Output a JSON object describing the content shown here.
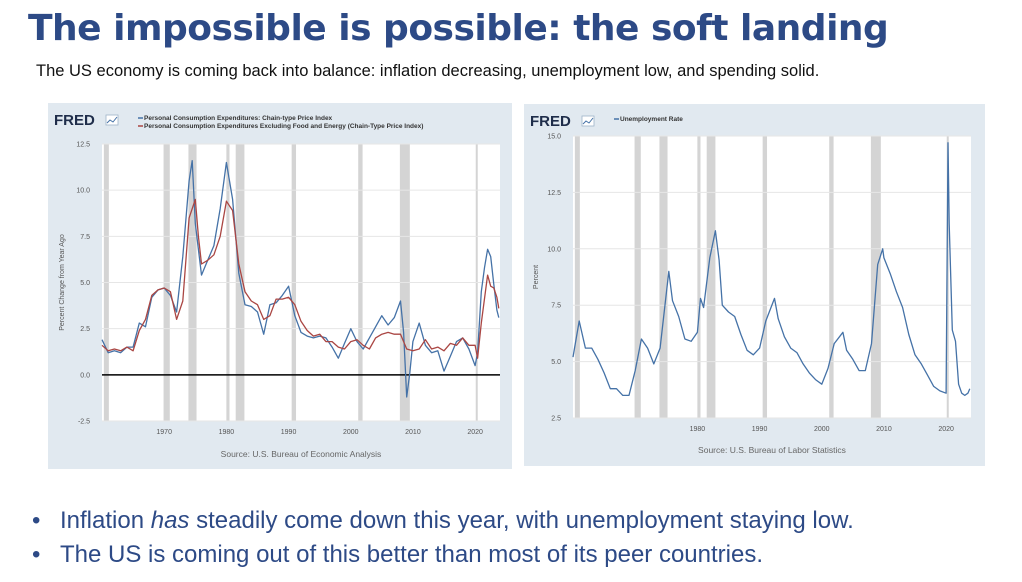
{
  "slide": {
    "title": "The impossible is possible: the soft landing",
    "subtitle": "The US economy is coming back into balance: inflation decreasing, unemployment low, and spending solid.",
    "bullets": [
      {
        "before": "Inflation ",
        "emph": "has",
        "after": " steadily come down this year, with unemployment staying low."
      },
      {
        "before": "The US is coming out of this better than most of its peer countries.",
        "emph": "",
        "after": ""
      }
    ],
    "bullet_glyph": "•"
  },
  "colors": {
    "title": "#2d4a86",
    "panel_bg": "#e1e9f0",
    "series_blue": "#4572a7",
    "series_red": "#aa4643",
    "recession": "#d4d4d4"
  },
  "chart_data": [
    {
      "type": "line",
      "logo": "FRED",
      "logo_icon": "fred-chart-icon",
      "legend_placement": "top-left",
      "ylabel": "Percent Change from Year Ago",
      "xlabel": "",
      "source": "Source: U.S. Bureau of Economic Analysis",
      "xlim": [
        1960,
        2024
      ],
      "ylim": [
        -2.5,
        12.5
      ],
      "yticks": [
        -2.5,
        0.0,
        2.5,
        5.0,
        7.5,
        10.0,
        12.5
      ],
      "ytick_labels": [
        "-2.5",
        "0.0",
        "2.5",
        "5.0",
        "7.5",
        "10.0",
        "12.5"
      ],
      "xticks": [
        1970,
        1980,
        1990,
        2000,
        2010,
        2020
      ],
      "xtick_labels": [
        "1970",
        "1980",
        "1990",
        "2000",
        "2010",
        "2020"
      ],
      "zero_line": true,
      "recessions": [
        [
          1960.3,
          1961.1
        ],
        [
          1969.9,
          1970.9
        ],
        [
          1973.9,
          1975.2
        ],
        [
          1980.0,
          1980.5
        ],
        [
          1981.5,
          1982.9
        ],
        [
          1990.5,
          1991.2
        ],
        [
          2001.2,
          2001.9
        ],
        [
          2007.9,
          2009.5
        ],
        [
          2020.1,
          2020.4
        ]
      ],
      "series": [
        {
          "name": "Personal Consumption Expenditures: Chain-type Price Index",
          "color": "#4572a7",
          "x": [
            1960.0,
            1961.0,
            1962.0,
            1963.0,
            1964.0,
            1965.0,
            1966.0,
            1967.0,
            1968.0,
            1969.0,
            1970.0,
            1971.0,
            1972.0,
            1973.0,
            1974.0,
            1974.5,
            1975.0,
            1976.0,
            1977.0,
            1978.0,
            1979.0,
            1980.0,
            1981.0,
            1982.0,
            1983.0,
            1984.0,
            1985.0,
            1986.0,
            1987.0,
            1988.0,
            1989.0,
            1990.0,
            1991.0,
            1992.0,
            1993.0,
            1994.0,
            1995.0,
            1996.0,
            1997.0,
            1998.0,
            1999.0,
            2000.0,
            2001.0,
            2002.0,
            2003.0,
            2004.0,
            2005.0,
            2006.0,
            2007.0,
            2008.0,
            2008.5,
            2009.0,
            2009.5,
            2010.0,
            2011.0,
            2012.0,
            2013.0,
            2014.0,
            2015.0,
            2016.0,
            2017.0,
            2018.0,
            2019.0,
            2020.0,
            2020.4,
            2021.0,
            2021.5,
            2022.0,
            2022.5,
            2023.0,
            2023.5,
            2023.8
          ],
          "y": [
            1.9,
            1.2,
            1.3,
            1.2,
            1.5,
            1.5,
            2.8,
            2.6,
            4.2,
            4.6,
            4.7,
            4.3,
            3.4,
            6.4,
            10.5,
            11.6,
            8.2,
            5.4,
            6.2,
            7.0,
            9.0,
            11.5,
            9.5,
            5.5,
            3.8,
            3.7,
            3.4,
            2.2,
            3.8,
            3.9,
            4.3,
            4.8,
            3.2,
            2.3,
            2.1,
            2.0,
            2.1,
            2.0,
            1.5,
            0.9,
            1.7,
            2.5,
            1.8,
            1.4,
            2.0,
            2.6,
            3.2,
            2.7,
            3.1,
            4.0,
            2.3,
            -1.2,
            0.1,
            1.8,
            2.8,
            1.6,
            1.2,
            1.3,
            0.2,
            1.0,
            1.8,
            2.0,
            1.4,
            0.5,
            1.2,
            4.5,
            5.8,
            6.8,
            6.4,
            4.9,
            3.5,
            3.1
          ]
        },
        {
          "name": "Personal Consumption Expenditures Excluding Food and Energy (Chain-Type Price Index)",
          "color": "#aa4643",
          "x": [
            1960.0,
            1961.0,
            1962.0,
            1963.0,
            1964.0,
            1965.0,
            1966.0,
            1967.0,
            1968.0,
            1969.0,
            1970.0,
            1971.0,
            1972.0,
            1973.0,
            1974.0,
            1975.0,
            1975.5,
            1976.0,
            1977.0,
            1978.0,
            1979.0,
            1980.0,
            1981.0,
            1982.0,
            1983.0,
            1984.0,
            1985.0,
            1986.0,
            1987.0,
            1988.0,
            1989.0,
            1990.0,
            1991.0,
            1992.0,
            1993.0,
            1994.0,
            1995.0,
            1996.0,
            1997.0,
            1998.0,
            1999.0,
            2000.0,
            2001.0,
            2002.0,
            2003.0,
            2004.0,
            2005.0,
            2006.0,
            2007.0,
            2008.0,
            2009.0,
            2010.0,
            2011.0,
            2012.0,
            2013.0,
            2014.0,
            2015.0,
            2016.0,
            2017.0,
            2018.0,
            2019.0,
            2020.0,
            2020.4,
            2021.0,
            2022.0,
            2022.5,
            2023.0,
            2023.5,
            2023.8
          ],
          "y": [
            1.6,
            1.3,
            1.4,
            1.3,
            1.5,
            1.3,
            2.4,
            3.0,
            4.3,
            4.6,
            4.7,
            4.5,
            3.0,
            4.0,
            8.5,
            9.5,
            7.5,
            6.0,
            6.2,
            6.5,
            7.5,
            9.4,
            8.9,
            6.0,
            4.5,
            4.0,
            3.8,
            3.0,
            3.2,
            4.1,
            4.1,
            4.2,
            3.8,
            2.9,
            2.4,
            2.1,
            2.2,
            1.8,
            1.8,
            1.5,
            1.4,
            1.8,
            1.9,
            1.6,
            1.4,
            2.0,
            2.2,
            2.3,
            2.2,
            2.2,
            1.4,
            1.3,
            1.4,
            1.9,
            1.4,
            1.5,
            1.3,
            1.7,
            1.6,
            2.0,
            1.6,
            1.6,
            0.9,
            2.8,
            5.4,
            4.8,
            4.7,
            4.2,
            3.6
          ]
        }
      ]
    },
    {
      "type": "line",
      "logo": "FRED",
      "logo_icon": "fred-chart-icon",
      "legend_placement": "top-left",
      "ylabel": "Percent",
      "xlabel": "",
      "source": "Source: U.S. Bureau of Labor Statistics",
      "xlim": [
        1960,
        2024
      ],
      "ylim": [
        2.5,
        15.0
      ],
      "yticks": [
        2.5,
        5.0,
        7.5,
        10.0,
        12.5,
        15.0
      ],
      "ytick_labels": [
        "2.5",
        "5.0",
        "7.5",
        "10.0",
        "12.5",
        "15.0"
      ],
      "xticks": [
        1980,
        1990,
        2000,
        2010,
        2020
      ],
      "xtick_labels": [
        "1980",
        "1990",
        "2000",
        "2010",
        "2020"
      ],
      "zero_line": false,
      "recessions": [
        [
          1960.3,
          1961.1
        ],
        [
          1969.9,
          1970.9
        ],
        [
          1973.9,
          1975.2
        ],
        [
          1980.0,
          1980.5
        ],
        [
          1981.5,
          1982.9
        ],
        [
          1990.5,
          1991.2
        ],
        [
          2001.2,
          2001.9
        ],
        [
          2007.9,
          2009.5
        ],
        [
          2020.1,
          2020.4
        ]
      ],
      "series": [
        {
          "name": "Unemployment Rate",
          "color": "#4572a7",
          "x": [
            1960.0,
            1961.0,
            1962.0,
            1963.0,
            1964.0,
            1965.0,
            1966.0,
            1967.0,
            1968.0,
            1969.0,
            1970.0,
            1971.0,
            1972.0,
            1973.0,
            1974.0,
            1975.4,
            1976.0,
            1977.0,
            1978.0,
            1979.0,
            1980.0,
            1980.5,
            1981.0,
            1982.0,
            1982.9,
            1983.5,
            1984.0,
            1985.0,
            1986.0,
            1987.0,
            1988.0,
            1989.0,
            1990.0,
            1991.0,
            1992.4,
            1993.0,
            1994.0,
            1995.0,
            1996.0,
            1997.0,
            1998.0,
            1999.0,
            2000.0,
            2001.0,
            2002.0,
            2003.4,
            2004.0,
            2005.0,
            2006.0,
            2007.0,
            2008.0,
            2009.0,
            2009.8,
            2010.0,
            2011.0,
            2012.0,
            2013.0,
            2014.0,
            2015.0,
            2016.0,
            2017.0,
            2018.0,
            2019.0,
            2020.0,
            2020.3,
            2020.5,
            2021.0,
            2021.5,
            2022.0,
            2022.5,
            2023.0,
            2023.5,
            2023.8
          ],
          "y": [
            5.2,
            6.8,
            5.6,
            5.6,
            5.1,
            4.5,
            3.8,
            3.8,
            3.5,
            3.5,
            4.6,
            6.0,
            5.6,
            4.9,
            5.6,
            9.0,
            7.7,
            7.0,
            6.0,
            5.9,
            6.3,
            7.8,
            7.4,
            9.6,
            10.8,
            9.5,
            7.5,
            7.2,
            7.0,
            6.2,
            5.5,
            5.3,
            5.6,
            6.8,
            7.8,
            6.9,
            6.1,
            5.6,
            5.4,
            4.9,
            4.5,
            4.2,
            4.0,
            4.7,
            5.8,
            6.3,
            5.5,
            5.1,
            4.6,
            4.6,
            5.8,
            9.3,
            10.0,
            9.6,
            8.9,
            8.1,
            7.4,
            6.2,
            5.3,
            4.9,
            4.4,
            3.9,
            3.7,
            3.6,
            14.7,
            11.1,
            6.4,
            5.9,
            4.0,
            3.6,
            3.5,
            3.6,
            3.8
          ]
        }
      ]
    }
  ]
}
